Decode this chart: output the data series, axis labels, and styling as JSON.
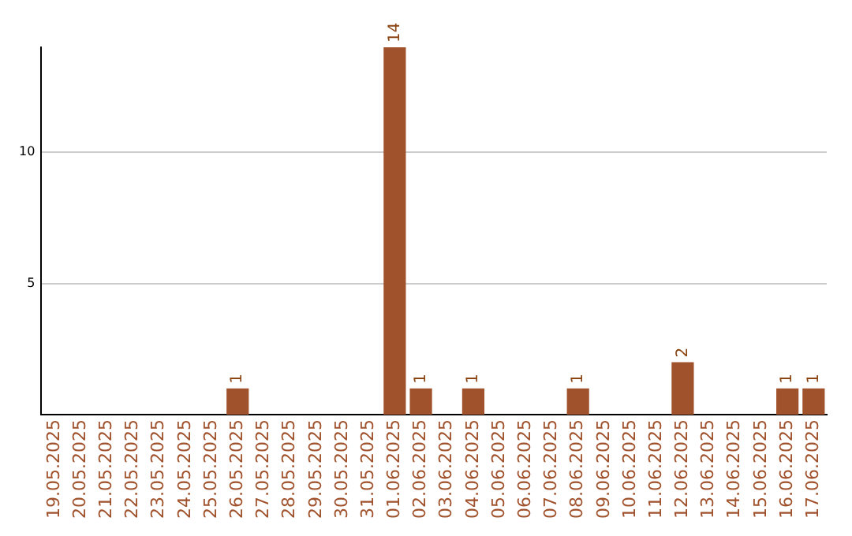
{
  "chart_data": {
    "type": "bar",
    "categories": [
      "19.05.2025",
      "20.05.2025",
      "21.05.2025",
      "22.05.2025",
      "23.05.2025",
      "24.05.2025",
      "25.05.2025",
      "26.05.2025",
      "27.05.2025",
      "28.05.2025",
      "29.05.2025",
      "30.05.2025",
      "31.05.2025",
      "01.06.2025",
      "02.06.2025",
      "03.06.2025",
      "04.06.2025",
      "05.06.2025",
      "06.06.2025",
      "07.06.2025",
      "08.06.2025",
      "09.06.2025",
      "10.06.2025",
      "11.06.2025",
      "12.06.2025",
      "13.06.2025",
      "14.06.2025",
      "15.06.2025",
      "16.06.2025",
      "17.06.2025"
    ],
    "values": [
      0,
      0,
      0,
      0,
      0,
      0,
      0,
      1,
      0,
      0,
      0,
      0,
      0,
      14,
      1,
      0,
      1,
      0,
      0,
      0,
      1,
      0,
      0,
      0,
      2,
      0,
      0,
      0,
      1,
      1
    ],
    "value_labels": [
      null,
      null,
      null,
      null,
      null,
      null,
      null,
      "1",
      null,
      null,
      null,
      null,
      null,
      "14",
      "1",
      null,
      "1",
      null,
      null,
      null,
      "1",
      null,
      null,
      null,
      "2",
      null,
      null,
      null,
      "1",
      "1"
    ],
    "color": "#a0522d",
    "ylim": [
      0,
      14
    ],
    "yticks": [
      5,
      10
    ],
    "grid": "y",
    "legend": false
  }
}
